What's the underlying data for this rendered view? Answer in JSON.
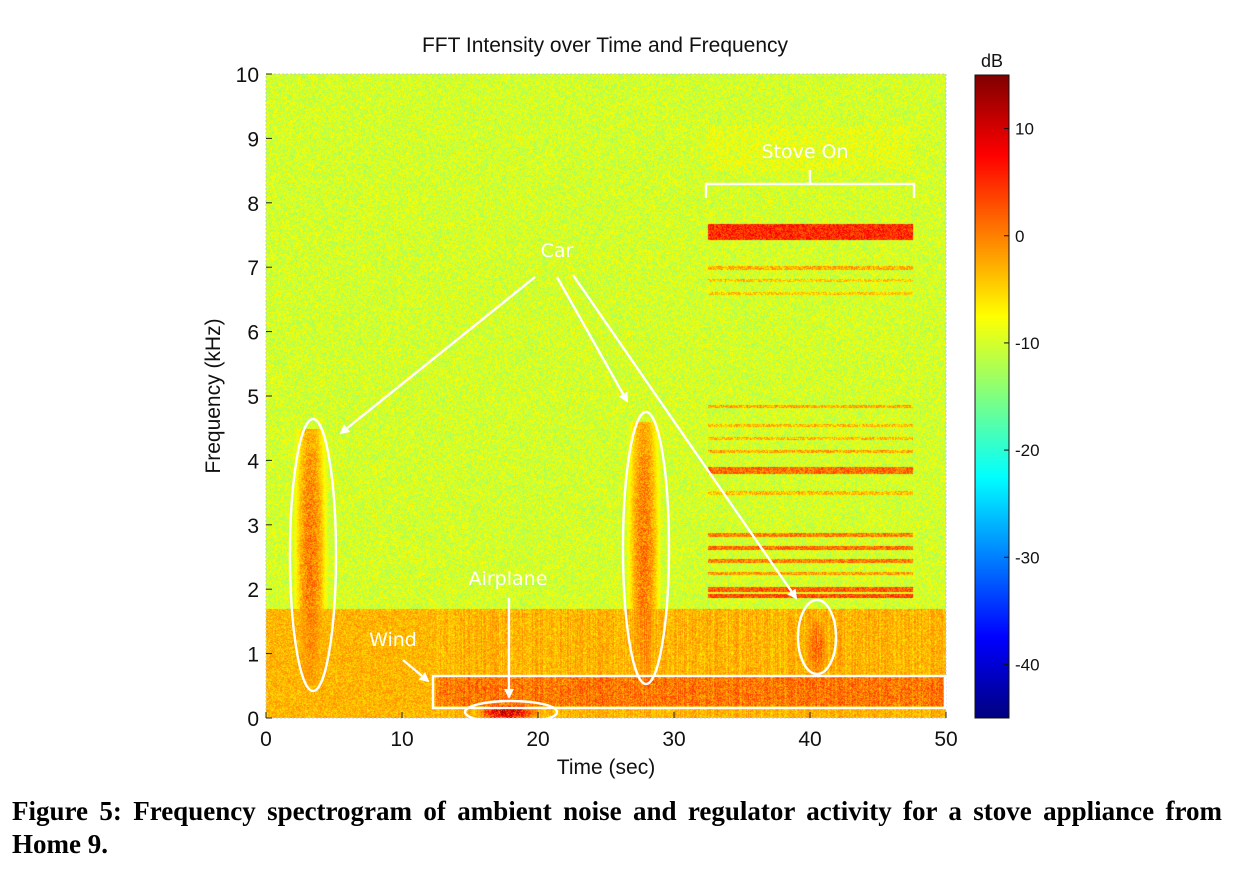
{
  "chart_data": {
    "type": "heatmap",
    "title": "FFT Intensity over Time and Frequency",
    "xlabel": "Time (sec)",
    "ylabel": "Frequency (kHz)",
    "xlim": [
      0,
      50
    ],
    "ylim": [
      0,
      10
    ],
    "x_ticks": [
      "0",
      "10",
      "20",
      "30",
      "40",
      "50"
    ],
    "y_ticks": [
      "0",
      "1",
      "2",
      "3",
      "4",
      "5",
      "6",
      "7",
      "8",
      "9",
      "10"
    ],
    "colorbar": {
      "label": "dB",
      "range": [
        -45,
        15
      ],
      "ticks": [
        "10",
        "0",
        "-10",
        "-20",
        "-30",
        "-40"
      ],
      "colormap": "jet"
    },
    "background_level_db": -10,
    "regions": [
      {
        "name": "broadband noise band",
        "x": [
          0,
          50
        ],
        "y": [
          0,
          1.7
        ],
        "level_db": -2
      },
      {
        "name": "car 1",
        "x": [
          2,
          4.5
        ],
        "y": [
          0.5,
          4.5
        ],
        "level_db": 2
      },
      {
        "name": "car 2",
        "x": [
          26.5,
          29
        ],
        "y": [
          0.5,
          4.6
        ],
        "level_db": 2
      },
      {
        "name": "car 3",
        "x": [
          39.5,
          41.5
        ],
        "y": [
          0.7,
          1.5
        ],
        "level_db": 3
      },
      {
        "name": "airplane",
        "x": [
          15,
          20.5
        ],
        "y": [
          0.0,
          0.2
        ],
        "level_db": 12
      },
      {
        "name": "wind",
        "x": [
          12.5,
          50
        ],
        "y": [
          0.2,
          0.65
        ],
        "level_db": 2
      }
    ],
    "stove_bands_khz": [
      {
        "f": 7.55,
        "width": 0.25,
        "level_db": 5
      },
      {
        "f": 7.0,
        "width": 0.06,
        "level_db": -3
      },
      {
        "f": 6.8,
        "width": 0.05,
        "level_db": -5
      },
      {
        "f": 6.6,
        "width": 0.05,
        "level_db": -5
      },
      {
        "f": 4.85,
        "width": 0.05,
        "level_db": -3
      },
      {
        "f": 4.55,
        "width": 0.05,
        "level_db": -4
      },
      {
        "f": 4.35,
        "width": 0.05,
        "level_db": -4
      },
      {
        "f": 4.15,
        "width": 0.05,
        "level_db": -3
      },
      {
        "f": 3.85,
        "width": 0.1,
        "level_db": 1
      },
      {
        "f": 3.5,
        "width": 0.05,
        "level_db": -4
      },
      {
        "f": 2.85,
        "width": 0.06,
        "level_db": 0
      },
      {
        "f": 2.65,
        "width": 0.06,
        "level_db": 1
      },
      {
        "f": 2.45,
        "width": 0.06,
        "level_db": 0
      },
      {
        "f": 2.25,
        "width": 0.05,
        "level_db": -2
      },
      {
        "f": 2.0,
        "width": 0.08,
        "level_db": 2
      },
      {
        "f": 1.9,
        "width": 0.06,
        "level_db": 3
      }
    ],
    "stove_on_interval_sec": [
      32.5,
      47.5
    ],
    "annotations": [
      {
        "id": "car",
        "text": "Car",
        "x": 21.5,
        "y": 7.2
      },
      {
        "id": "stove",
        "text": "Stove On",
        "x": 39.5,
        "y": 8.85
      },
      {
        "id": "airplane",
        "text": "Airplane",
        "x": 17.8,
        "y": 2.1
      },
      {
        "id": "wind",
        "text": "Wind",
        "x": 9.5,
        "y": 1.1
      }
    ]
  },
  "caption": "Figure 5: Frequency spectrogram of ambient noise and regulator activity for a stove appliance from Home 9."
}
